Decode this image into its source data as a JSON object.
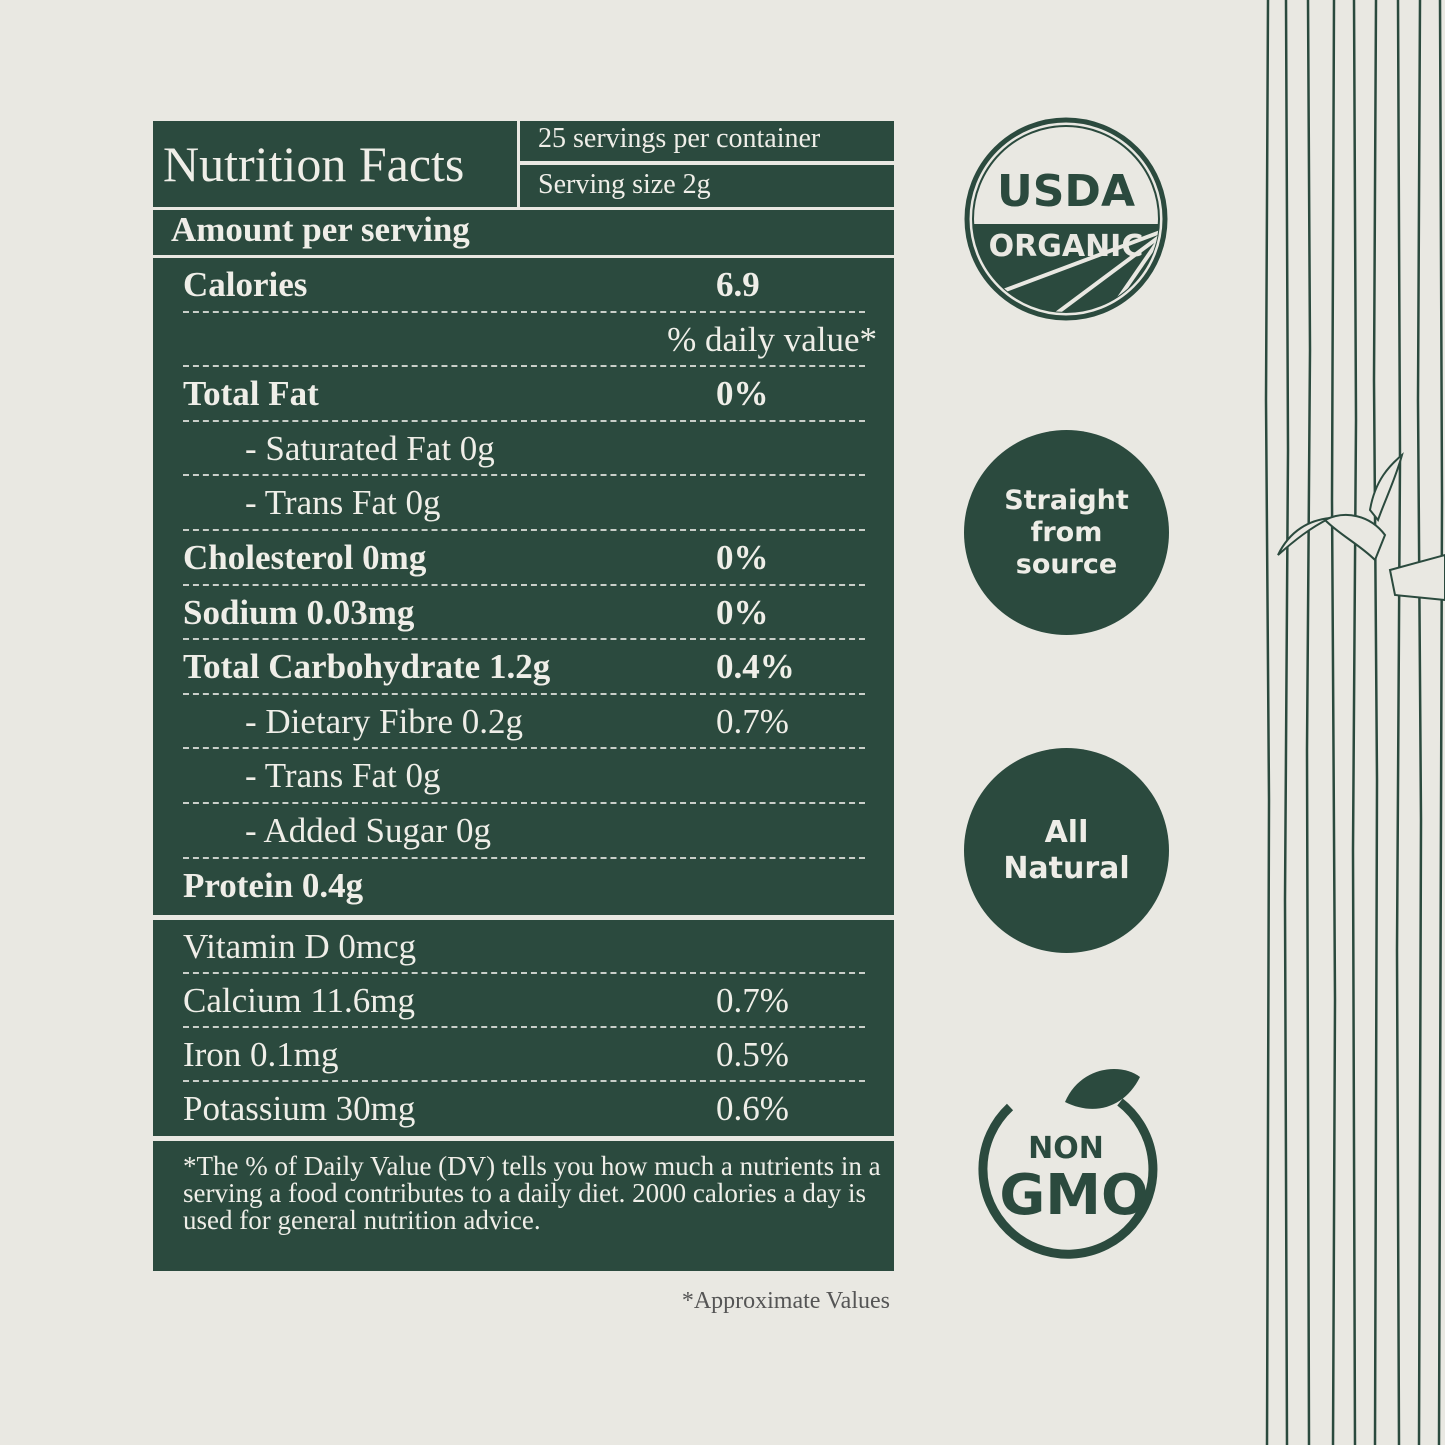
{
  "header": {
    "title": "Nutrition Facts",
    "servings_per_container": "25 servings per container",
    "serving_size": "Serving size 2g"
  },
  "amount_per_serving": "Amount per serving",
  "main_rows": [
    {
      "label": "Calories",
      "value": "6.9",
      "bold": true
    },
    {
      "label": "",
      "value": "% daily value*"
    },
    {
      "label": "Total Fat",
      "value": "0%",
      "bold": true
    },
    {
      "label": "- Saturated Fat 0g",
      "value": "",
      "indent": true
    },
    {
      "label": "- Trans Fat 0g",
      "value": "",
      "indent": true
    },
    {
      "label": "Cholesterol 0mg",
      "value": "0%",
      "bold": true
    },
    {
      "label": "Sodium 0.03mg",
      "value": "0%",
      "bold": true
    },
    {
      "label": "Total Carbohydrate 1.2g",
      "value": "0.4%",
      "bold": true
    },
    {
      "label": "- Dietary Fibre 0.2g",
      "value": "0.7%",
      "indent": true
    },
    {
      "label": "- Trans Fat 0g",
      "value": "",
      "indent": true
    },
    {
      "label": "- Added Sugar 0g",
      "value": "",
      "indent": true
    },
    {
      "label": "Protein 0.4g",
      "value": "",
      "bold": true
    }
  ],
  "vitamin_rows": [
    {
      "label": "Vitamin D 0mcg",
      "value": ""
    },
    {
      "label": "Calcium 11.6mg",
      "value": "0.7%"
    },
    {
      "label": "Iron 0.1mg",
      "value": "0.5%"
    },
    {
      "label": "Potassium 30mg",
      "value": "0.6%"
    }
  ],
  "footnote": "*The % of Daily Value (DV) tells you how much a nutrients in a serving a food contributes to a daily diet. 2000 calories a day is used for general nutrition advice.",
  "approximate_note": "*Approximate Values",
  "badges": {
    "usda_top": "USDA",
    "usda_bottom": "ORGANIC",
    "straight": [
      "Straight",
      "from",
      "source"
    ],
    "natural": [
      "All",
      "Natural"
    ],
    "nongmo_top": "NON",
    "nongmo_bottom": "GMO"
  },
  "colors": {
    "background": "#e9e8e2",
    "green": "#2b4a3e",
    "text_light": "#efeee8"
  }
}
